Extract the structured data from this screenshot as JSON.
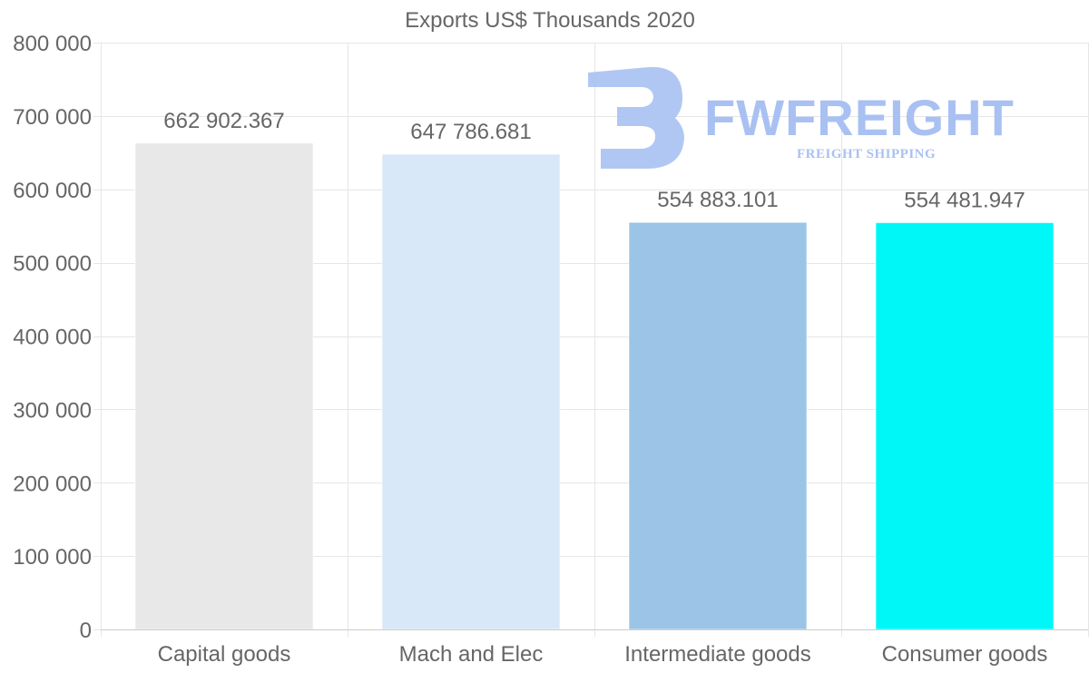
{
  "chart_data": {
    "type": "bar",
    "title": "Exports US$ Thousands 2020",
    "categories": [
      "Capital goods",
      "Mach and Elec",
      "Intermediate goods",
      "Consumer goods"
    ],
    "values": [
      662902.367,
      647786.681,
      554883.101,
      554481.947
    ],
    "value_labels": [
      "662 902.367",
      "647 786.681",
      "554 883.101",
      "554 481.947"
    ],
    "colors": [
      "#e8e8e8",
      "#d8e8f9",
      "#9cc4e6",
      "#00f7f7"
    ],
    "ylim": [
      0,
      800000
    ],
    "yticks": [
      0,
      100000,
      200000,
      300000,
      400000,
      500000,
      600000,
      700000,
      800000
    ],
    "ytick_labels": [
      "0",
      "100 000",
      "200 000",
      "300 000",
      "400 000",
      "500 000",
      "600 000",
      "700 000",
      "800 000"
    ],
    "xlabel": "",
    "ylabel": "",
    "grid": true
  },
  "watermark": {
    "name": "FWFREIGHT",
    "tagline": "FREIGHT SHIPPING",
    "color": "#a9c1f2"
  }
}
